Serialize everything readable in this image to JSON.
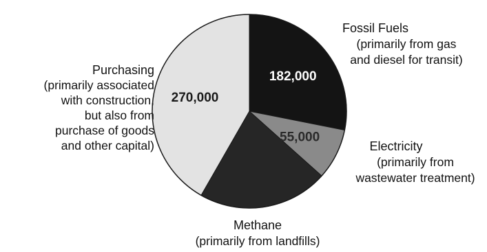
{
  "chart_data": {
    "type": "pie",
    "categories": [
      "Fossil Fuels",
      "Electricity",
      "Methane",
      "Purchasing"
    ],
    "values": [
      182000,
      55000,
      140000,
      270000
    ],
    "value_labels": [
      "182,000",
      "55,000",
      "",
      "270,000"
    ],
    "notes": [
      [
        "(primarily from gas",
        "and diesel for transit)"
      ],
      [
        "(primarily from",
        "wastewater treatment)"
      ],
      [
        "(primarily from landfills)"
      ],
      [
        "(primarily associated",
        "with construction,",
        "but also from",
        "purchase of goods",
        "and other capital)"
      ]
    ],
    "colors": [
      "#141414",
      "#8a8a8a",
      "#262626",
      "#e3e3e3"
    ],
    "value_label_colors": [
      "#ffffff",
      "#2a2a2a",
      "#ffffff",
      "#1a1a1a"
    ],
    "start_angle_deg": 0,
    "direction": "clockwise"
  }
}
